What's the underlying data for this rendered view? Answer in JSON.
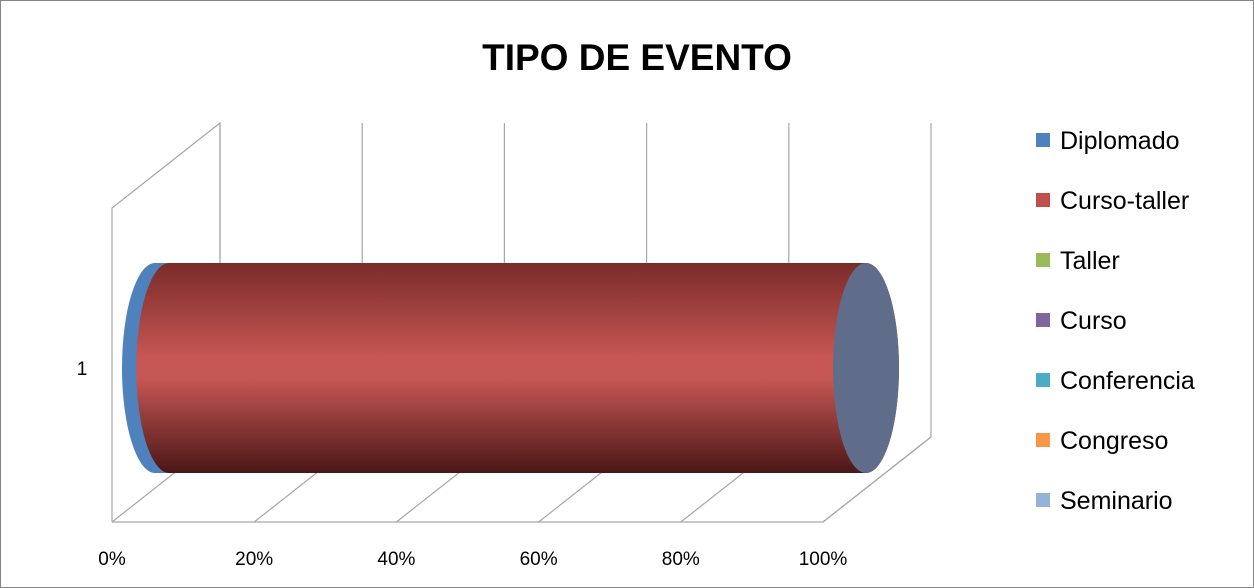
{
  "chart_data": {
    "type": "bar",
    "orientation": "horizontal",
    "stacked": "100%",
    "style": "3d-cylinder",
    "title": "TIPO DE EVENTO",
    "categories": [
      "1"
    ],
    "series": [
      {
        "name": "Diplomado",
        "values": [
          2
        ],
        "color": "#4f81bd"
      },
      {
        "name": "Curso-taller",
        "values": [
          98
        ],
        "color": "#c0504d"
      },
      {
        "name": "Taller",
        "values": [
          0
        ],
        "color": "#9bbb59"
      },
      {
        "name": "Curso",
        "values": [
          0
        ],
        "color": "#8064a2"
      },
      {
        "name": "Conferencia",
        "values": [
          0
        ],
        "color": "#4bacc6"
      },
      {
        "name": "Congreso",
        "values": [
          0
        ],
        "color": "#f79646"
      },
      {
        "name": "Seminario",
        "values": [
          0
        ],
        "color": "#95b3d7"
      }
    ],
    "x_ticks": [
      "0%",
      "20%",
      "40%",
      "60%",
      "80%",
      "100%"
    ],
    "xlim": [
      0,
      100
    ],
    "grid": true,
    "legend_position": "right"
  }
}
